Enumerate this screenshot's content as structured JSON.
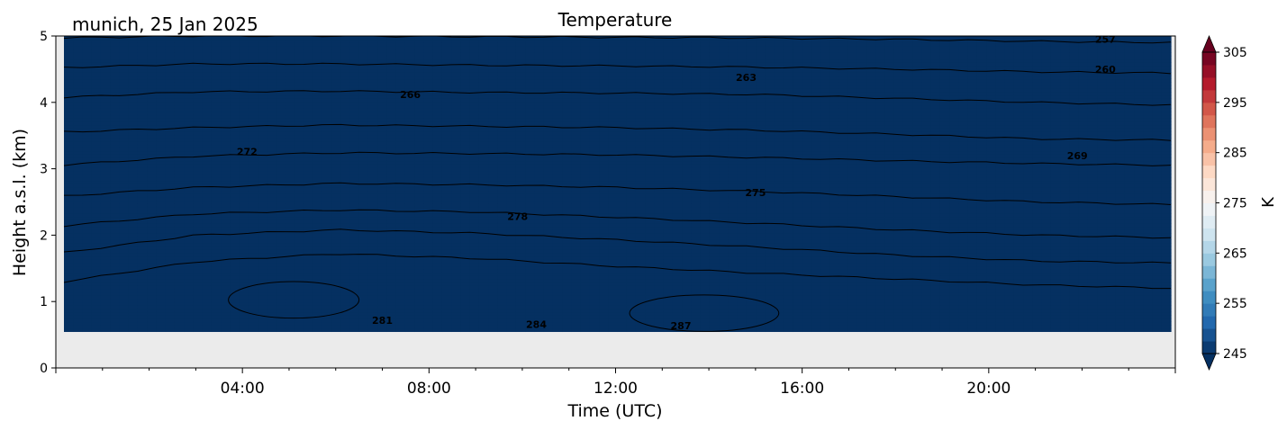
{
  "figure": {
    "title": "Temperature",
    "location_date": "munich, 25 Jan 2025"
  },
  "chart_data": {
    "type": "heatmap",
    "subtype": "filled-contour",
    "title": "Temperature",
    "xlabel": "Time (UTC)",
    "ylabel": "Height a.s.l. (km)",
    "x_ticks": [
      "04:00",
      "08:00",
      "12:00",
      "16:00",
      "20:00"
    ],
    "x_tick_hours": [
      4,
      8,
      12,
      16,
      20
    ],
    "xlim_hours": [
      0,
      24
    ],
    "y_ticks": [
      0,
      1,
      2,
      3,
      4,
      5
    ],
    "ylim": [
      0,
      5
    ],
    "data_height_min_km": 0.55,
    "data_height_max_km": 5.0,
    "grid": false,
    "missing_data_color": "#ebebeb",
    "colorbar": {
      "label": "K",
      "ticks": [
        245,
        255,
        265,
        275,
        285,
        295,
        305
      ],
      "range": [
        245,
        305
      ],
      "step": 2.5,
      "colormap": "RdBu_r",
      "extend": "both"
    },
    "contour_interval": 3,
    "contour_labels": [
      {
        "value": "257",
        "hour": 22.5,
        "height_km": 4.95
      },
      {
        "value": "260",
        "hour": 22.5,
        "height_km": 4.5
      },
      {
        "value": "263",
        "hour": 14.8,
        "height_km": 4.38
      },
      {
        "value": "266",
        "hour": 7.6,
        "height_km": 4.12
      },
      {
        "value": "269",
        "hour": 21.9,
        "height_km": 3.2
      },
      {
        "value": "272",
        "hour": 4.1,
        "height_km": 3.26
      },
      {
        "value": "275",
        "hour": 15.0,
        "height_km": 2.64
      },
      {
        "value": "278",
        "hour": 9.9,
        "height_km": 2.28
      },
      {
        "value": "281",
        "hour": 7.0,
        "height_km": 0.72
      },
      {
        "value": "284",
        "hour": 10.3,
        "height_km": 0.66
      },
      {
        "value": "287",
        "hour": 13.4,
        "height_km": 0.64
      }
    ],
    "isotherms": [
      {
        "value": 257,
        "heights_km": [
          4.97,
          5.0,
          5.0,
          4.99,
          4.98,
          4.97,
          4.95,
          4.92,
          4.9
        ]
      },
      {
        "value": 260,
        "heights_km": [
          4.52,
          4.58,
          4.58,
          4.56,
          4.55,
          4.53,
          4.5,
          4.46,
          4.44
        ]
      },
      {
        "value": 263,
        "heights_km": [
          4.07,
          4.16,
          4.17,
          4.15,
          4.14,
          4.12,
          4.06,
          4.0,
          3.96
        ]
      },
      {
        "value": 266,
        "heights_km": [
          3.55,
          3.62,
          3.66,
          3.64,
          3.62,
          3.58,
          3.52,
          3.45,
          3.43
        ]
      },
      {
        "value": 269,
        "heights_km": [
          3.05,
          3.19,
          3.24,
          3.23,
          3.21,
          3.17,
          3.12,
          3.08,
          3.05
        ]
      },
      {
        "value": 272,
        "heights_km": [
          2.58,
          2.72,
          2.78,
          2.76,
          2.72,
          2.66,
          2.58,
          2.5,
          2.46
        ]
      },
      {
        "value": 275,
        "heights_km": [
          2.13,
          2.32,
          2.38,
          2.35,
          2.27,
          2.18,
          2.08,
          2.0,
          1.96
        ]
      },
      {
        "value": 278,
        "heights_km": [
          1.72,
          2.0,
          2.08,
          2.03,
          1.93,
          1.82,
          1.7,
          1.61,
          1.58
        ]
      },
      {
        "value": 281,
        "heights_km": [
          1.28,
          1.6,
          1.72,
          1.65,
          1.53,
          1.43,
          1.34,
          1.25,
          1.2
        ]
      }
    ],
    "warm_cores_287K": [
      {
        "hours": [
          3.7,
          6.5
        ],
        "heights_km": [
          0.75,
          1.3
        ]
      },
      {
        "hours": [
          12.3,
          15.5
        ],
        "heights_km": [
          0.55,
          1.1
        ]
      }
    ]
  }
}
